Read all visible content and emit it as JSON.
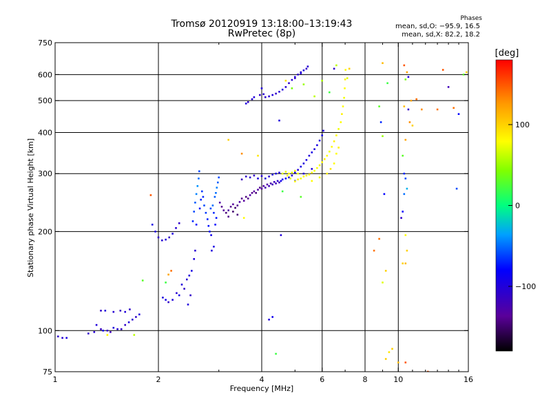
{
  "title_line1": "Tromsø 20120919 13:18:00–13:19:43",
  "title_line2": "RwPretec (8p)",
  "phases_label": "Phases",
  "phases_o": "mean, sd,O: −95.9, 16.5",
  "phases_x": "mean, sd,X:  82.2, 18.2",
  "chart_data": {
    "type": "scatter",
    "title": "Tromsø 20120919 13:18:00–13:19:43",
    "subtitle": "RwPretec (8p)",
    "xlabel": "Frequency [MHz]",
    "ylabel": "Stationary phase Virtual Height [km]",
    "x_scale": "log",
    "y_scale": "log",
    "xlim": [
      1,
      16
    ],
    "ylim": [
      75,
      750
    ],
    "x_ticks": [
      1,
      2,
      4,
      6,
      8,
      10,
      16
    ],
    "x_tick_labels": [
      "1",
      "2",
      "4",
      "6",
      "8",
      "10",
      "16"
    ],
    "y_ticks": [
      75,
      100,
      200,
      300,
      400,
      500,
      600,
      750
    ],
    "y_tick_labels": [
      "75",
      "100",
      "200",
      "300",
      "400",
      "500",
      "600",
      "750"
    ],
    "grid": true,
    "colorbar": {
      "label": "[deg]",
      "range": [
        -180,
        180
      ],
      "ticks": [
        100,
        0,
        -100
      ],
      "tick_labels": [
        "100",
        "0",
        "−100"
      ]
    },
    "series": [
      {
        "name": "O",
        "mean_phase": -95.9,
        "sd_phase": 16.5
      },
      {
        "name": "X",
        "mean_phase": 82.2,
        "sd_phase": 18.2
      }
    ],
    "points": [
      [
        1.02,
        96,
        -110
      ],
      [
        1.05,
        95,
        -105
      ],
      [
        1.08,
        95,
        -95
      ],
      [
        1.25,
        98,
        -110
      ],
      [
        1.3,
        99,
        -105
      ],
      [
        1.32,
        104,
        -100
      ],
      [
        1.36,
        101,
        -115
      ],
      [
        1.38,
        100,
        -90
      ],
      [
        1.42,
        100,
        -110
      ],
      [
        1.45,
        99,
        -120
      ],
      [
        1.48,
        102,
        -100
      ],
      [
        1.52,
        101,
        -105
      ],
      [
        1.56,
        101,
        -115
      ],
      [
        1.6,
        104,
        -110
      ],
      [
        1.64,
        106,
        -100
      ],
      [
        1.68,
        108,
        -105
      ],
      [
        1.72,
        110,
        -110
      ],
      [
        1.76,
        112,
        -100
      ],
      [
        1.36,
        115,
        -110
      ],
      [
        1.4,
        115,
        -100
      ],
      [
        1.48,
        114,
        -105
      ],
      [
        1.55,
        115,
        -115
      ],
      [
        1.6,
        114,
        -100
      ],
      [
        1.65,
        116,
        -110
      ],
      [
        1.42,
        97,
        80
      ],
      [
        1.7,
        97,
        60
      ],
      [
        1.9,
        258,
        150
      ],
      [
        1.8,
        142,
        30
      ],
      [
        1.92,
        210,
        -95
      ],
      [
        1.96,
        200,
        -100
      ],
      [
        2.0,
        192,
        -110
      ],
      [
        2.05,
        188,
        -105
      ],
      [
        2.1,
        189,
        -100
      ],
      [
        2.15,
        192,
        -110
      ],
      [
        2.2,
        197,
        -100
      ],
      [
        2.25,
        205,
        -105
      ],
      [
        2.3,
        212,
        -110
      ],
      [
        2.06,
        126,
        -100
      ],
      [
        2.1,
        124,
        -90
      ],
      [
        2.14,
        122,
        -110
      ],
      [
        2.2,
        124,
        -100
      ],
      [
        2.26,
        130,
        -105
      ],
      [
        2.3,
        128,
        -95
      ],
      [
        2.34,
        138,
        -100
      ],
      [
        2.38,
        134,
        -110
      ],
      [
        2.42,
        143,
        -105
      ],
      [
        2.46,
        147,
        -100
      ],
      [
        2.5,
        152,
        -95
      ],
      [
        2.54,
        165,
        -100
      ],
      [
        2.56,
        175,
        -105
      ],
      [
        2.44,
        120,
        -100
      ],
      [
        2.48,
        128,
        -110
      ],
      [
        2.1,
        140,
        20
      ],
      [
        2.14,
        148,
        120
      ],
      [
        2.18,
        152,
        140
      ],
      [
        2.52,
        215,
        -70
      ],
      [
        2.54,
        230,
        -60
      ],
      [
        2.56,
        245,
        -55
      ],
      [
        2.58,
        260,
        -45
      ],
      [
        2.6,
        275,
        -40
      ],
      [
        2.62,
        290,
        -50
      ],
      [
        2.63,
        305,
        -60
      ],
      [
        2.58,
        210,
        -80
      ],
      [
        2.64,
        235,
        -75
      ],
      [
        2.66,
        250,
        -70
      ],
      [
        2.68,
        265,
        -65
      ],
      [
        2.7,
        255,
        -70
      ],
      [
        2.72,
        240,
        -60
      ],
      [
        2.75,
        228,
        -65
      ],
      [
        2.78,
        218,
        -70
      ],
      [
        2.8,
        208,
        -75
      ],
      [
        2.82,
        200,
        -80
      ],
      [
        2.85,
        195,
        -90
      ],
      [
        2.84,
        235,
        -60
      ],
      [
        2.88,
        240,
        -50
      ],
      [
        2.9,
        228,
        -70
      ],
      [
        2.92,
        255,
        -55
      ],
      [
        2.94,
        262,
        -50
      ],
      [
        2.96,
        272,
        -45
      ],
      [
        2.98,
        282,
        -55
      ],
      [
        3.0,
        292,
        -60
      ],
      [
        2.93,
        210,
        -80
      ],
      [
        2.95,
        220,
        -75
      ],
      [
        2.86,
        175,
        -100
      ],
      [
        2.9,
        180,
        -95
      ],
      [
        3.02,
        245,
        -130
      ],
      [
        3.06,
        238,
        -140
      ],
      [
        3.1,
        232,
        -135
      ],
      [
        3.15,
        228,
        -145
      ],
      [
        3.2,
        232,
        -130
      ],
      [
        3.25,
        238,
        -140
      ],
      [
        3.3,
        242,
        -135
      ],
      [
        3.35,
        236,
        -150
      ],
      [
        3.4,
        240,
        -140
      ],
      [
        3.45,
        246,
        -130
      ],
      [
        3.5,
        252,
        -140
      ],
      [
        3.55,
        248,
        -135
      ],
      [
        3.6,
        255,
        -145
      ],
      [
        3.65,
        252,
        -140
      ],
      [
        3.7,
        258,
        -130
      ],
      [
        3.75,
        262,
        -140
      ],
      [
        3.8,
        265,
        -135
      ],
      [
        3.85,
        262,
        -145
      ],
      [
        3.9,
        268,
        -130
      ],
      [
        3.95,
        272,
        -140
      ],
      [
        4.0,
        270,
        -135
      ],
      [
        4.05,
        275,
        -130
      ],
      [
        4.1,
        272,
        -125
      ],
      [
        4.15,
        278,
        -130
      ],
      [
        4.2,
        275,
        -120
      ],
      [
        4.25,
        280,
        -125
      ],
      [
        4.3,
        278,
        -120
      ],
      [
        4.35,
        283,
        -115
      ],
      [
        4.4,
        280,
        -120
      ],
      [
        4.45,
        285,
        -110
      ],
      [
        4.5,
        282,
        -115
      ],
      [
        3.5,
        288,
        -115
      ],
      [
        3.6,
        294,
        -110
      ],
      [
        3.7,
        292,
        -105
      ],
      [
        3.8,
        296,
        -110
      ],
      [
        3.9,
        290,
        -100
      ],
      [
        4.0,
        295,
        -105
      ],
      [
        4.1,
        290,
        -100
      ],
      [
        4.2,
        294,
        -105
      ],
      [
        4.3,
        298,
        -100
      ],
      [
        4.4,
        300,
        -95
      ],
      [
        4.5,
        302,
        -100
      ],
      [
        3.3,
        230,
        -150
      ],
      [
        3.4,
        225,
        -145
      ],
      [
        3.2,
        222,
        -140
      ],
      [
        4.55,
        285,
        -90
      ],
      [
        4.6,
        288,
        -85
      ],
      [
        4.7,
        290,
        -90
      ],
      [
        4.8,
        292,
        -95
      ],
      [
        4.9,
        296,
        -100
      ],
      [
        5.0,
        302,
        -95
      ],
      [
        5.1,
        308,
        -100
      ],
      [
        5.2,
        315,
        -95
      ],
      [
        5.3,
        322,
        -100
      ],
      [
        5.4,
        330,
        -95
      ],
      [
        5.5,
        340,
        -100
      ],
      [
        5.6,
        348,
        -95
      ],
      [
        5.7,
        356,
        -100
      ],
      [
        5.8,
        366,
        -95
      ],
      [
        5.9,
        378,
        -100
      ],
      [
        6.0,
        392,
        -95
      ],
      [
        6.05,
        405,
        -100
      ],
      [
        5.3,
        300,
        -105
      ],
      [
        5.6,
        310,
        -100
      ],
      [
        5.0,
        285,
        -90
      ],
      [
        4.6,
        300,
        70
      ],
      [
        4.7,
        304,
        75
      ],
      [
        4.8,
        300,
        80
      ],
      [
        4.9,
        302,
        70
      ],
      [
        5.0,
        306,
        85
      ],
      [
        5.1,
        300,
        75
      ],
      [
        4.75,
        296,
        80
      ],
      [
        4.85,
        290,
        70
      ],
      [
        5.0,
        284,
        80
      ],
      [
        5.1,
        288,
        85
      ],
      [
        5.2,
        290,
        75
      ],
      [
        5.3,
        294,
        80
      ],
      [
        5.4,
        296,
        75
      ],
      [
        5.5,
        298,
        80
      ],
      [
        5.6,
        302,
        85
      ],
      [
        5.7,
        306,
        75
      ],
      [
        5.8,
        312,
        80
      ],
      [
        5.9,
        318,
        75
      ],
      [
        6.0,
        325,
        80
      ],
      [
        6.1,
        332,
        85
      ],
      [
        6.2,
        340,
        80
      ],
      [
        6.3,
        350,
        75
      ],
      [
        6.4,
        362,
        80
      ],
      [
        6.5,
        376,
        85
      ],
      [
        6.6,
        392,
        80
      ],
      [
        6.7,
        410,
        75
      ],
      [
        6.8,
        430,
        80
      ],
      [
        6.85,
        455,
        85
      ],
      [
        6.9,
        480,
        80
      ],
      [
        6.95,
        510,
        75
      ],
      [
        6.98,
        545,
        80
      ],
      [
        7.0,
        580,
        85
      ],
      [
        7.02,
        620,
        80
      ],
      [
        5.6,
        285,
        80
      ],
      [
        5.9,
        292,
        75
      ],
      [
        6.2,
        300,
        85
      ],
      [
        6.5,
        322,
        80
      ],
      [
        6.35,
        310,
        90
      ],
      [
        6.6,
        345,
        80
      ],
      [
        6.7,
        360,
        85
      ],
      [
        4.1,
        512,
        -110
      ],
      [
        4.2,
        515,
        -105
      ],
      [
        4.3,
        520,
        -100
      ],
      [
        4.4,
        525,
        -110
      ],
      [
        4.5,
        532,
        -105
      ],
      [
        4.6,
        540,
        -100
      ],
      [
        4.7,
        550,
        -105
      ],
      [
        4.8,
        565,
        -110
      ],
      [
        4.9,
        578,
        -105
      ],
      [
        5.0,
        590,
        -100
      ],
      [
        5.1,
        600,
        -110
      ],
      [
        5.2,
        610,
        -105
      ],
      [
        5.3,
        618,
        -100
      ],
      [
        5.4,
        625,
        -110
      ],
      [
        5.45,
        635,
        -105
      ],
      [
        5.0,
        585,
        -110
      ],
      [
        5.2,
        605,
        -100
      ],
      [
        3.6,
        490,
        -100
      ],
      [
        3.65,
        495,
        -110
      ],
      [
        3.75,
        505,
        -105
      ],
      [
        3.8,
        512,
        -100
      ],
      [
        3.95,
        520,
        -110
      ],
      [
        4.05,
        523,
        -105
      ],
      [
        4.0,
        545,
        -100
      ],
      [
        4.9,
        545,
        40
      ],
      [
        4.7,
        575,
        90
      ],
      [
        5.3,
        560,
        50
      ],
      [
        5.7,
        515,
        60
      ],
      [
        6.3,
        530,
        20
      ],
      [
        6.0,
        575,
        55
      ],
      [
        6.6,
        640,
        60
      ],
      [
        7.2,
        625,
        100
      ],
      [
        7.1,
        585,
        70
      ],
      [
        6.5,
        625,
        -110
      ],
      [
        3.2,
        380,
        100
      ],
      [
        3.5,
        345,
        130
      ],
      [
        3.55,
        220,
        80
      ],
      [
        4.55,
        195,
        -100
      ],
      [
        4.6,
        265,
        20
      ],
      [
        5.2,
        255,
        30
      ],
      [
        4.2,
        108,
        -100
      ],
      [
        4.3,
        110,
        -90
      ],
      [
        4.4,
        85,
        20
      ],
      [
        3.9,
        340,
        90
      ],
      [
        4.5,
        435,
        -100
      ],
      [
        8.5,
        175,
        140
      ],
      [
        8.8,
        190,
        140
      ],
      [
        9.0,
        650,
        110
      ],
      [
        9.3,
        565,
        20
      ],
      [
        9.1,
        260,
        -80
      ],
      [
        9.0,
        140,
        70
      ],
      [
        9.2,
        152,
        100
      ],
      [
        8.8,
        480,
        30
      ],
      [
        8.9,
        430,
        -70
      ],
      [
        9.0,
        390,
        50
      ],
      [
        9.4,
        86,
        90
      ],
      [
        9.6,
        88,
        100
      ],
      [
        9.2,
        82,
        100
      ],
      [
        10.0,
        80,
        110
      ],
      [
        10.5,
        80,
        150
      ],
      [
        10.2,
        220,
        -110
      ],
      [
        10.3,
        230,
        -80
      ],
      [
        10.4,
        300,
        -70
      ],
      [
        10.5,
        290,
        -60
      ],
      [
        10.6,
        175,
        100
      ],
      [
        10.5,
        160,
        110
      ],
      [
        10.4,
        640,
        150
      ],
      [
        10.6,
        610,
        120
      ],
      [
        10.5,
        580,
        40
      ],
      [
        10.3,
        340,
        30
      ],
      [
        10.4,
        480,
        110
      ],
      [
        10.8,
        430,
        130
      ],
      [
        10.9,
        500,
        120
      ],
      [
        10.7,
        470,
        -110
      ],
      [
        10.5,
        380,
        120
      ],
      [
        10.4,
        260,
        -50
      ],
      [
        10.6,
        270,
        -30
      ],
      [
        10.3,
        160,
        100
      ],
      [
        10.5,
        195,
        80
      ],
      [
        10.7,
        590,
        -100
      ],
      [
        11.0,
        420,
        100
      ],
      [
        11.3,
        505,
        140
      ],
      [
        11.7,
        470,
        130
      ],
      [
        12.2,
        75,
        150
      ],
      [
        13.0,
        470,
        140
      ],
      [
        13.5,
        620,
        150
      ],
      [
        14.0,
        550,
        -120
      ],
      [
        14.5,
        475,
        140
      ],
      [
        15.0,
        455,
        -80
      ],
      [
        14.8,
        270,
        -60
      ],
      [
        15.5,
        600,
        30
      ],
      [
        15.8,
        610,
        100
      ]
    ]
  }
}
